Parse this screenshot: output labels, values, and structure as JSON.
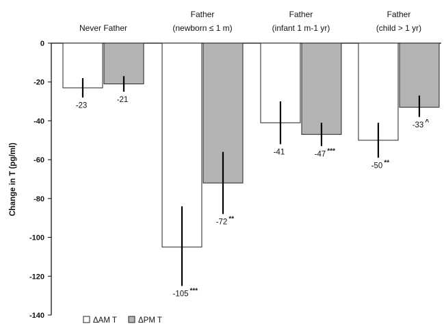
{
  "chart_data": {
    "type": "bar",
    "title": "",
    "xlabel": "",
    "ylabel": "Change in T (pg/ml)",
    "ylim": [
      -140,
      0
    ],
    "yticks": [
      0,
      -20,
      -40,
      -60,
      -80,
      -100,
      -120,
      -140
    ],
    "grid": false,
    "legend_position": "bottom-left",
    "categories": [
      {
        "line1": "Never Father",
        "line2": ""
      },
      {
        "line1": "Father",
        "line2": "(newborn ≤ 1 m)"
      },
      {
        "line1": "Father",
        "line2": "(infant 1 m-1 yr)"
      },
      {
        "line1": "Father",
        "line2": "(child > 1 yr)"
      }
    ],
    "series": [
      {
        "name": "ΔAM T",
        "color": "#ffffff",
        "values": [
          -23,
          -105,
          -41,
          -50
        ],
        "labels": [
          "-23",
          "-105",
          "-41",
          "-50"
        ],
        "significance": [
          "",
          "***",
          "",
          "**"
        ],
        "error_low": [
          -28,
          -125,
          -52,
          -59
        ],
        "error_high": [
          -18,
          -84,
          -30,
          -41
        ]
      },
      {
        "name": "ΔPM T",
        "color": "#b3b3b3",
        "values": [
          -21,
          -72,
          -47,
          -33
        ],
        "labels": [
          "-21",
          "-72",
          "-47",
          "-33"
        ],
        "significance": [
          "",
          "**",
          "***",
          "^"
        ],
        "error_low": [
          -25,
          -88,
          -53,
          -38
        ],
        "error_high": [
          -17,
          -56,
          -41,
          -27
        ]
      }
    ]
  }
}
